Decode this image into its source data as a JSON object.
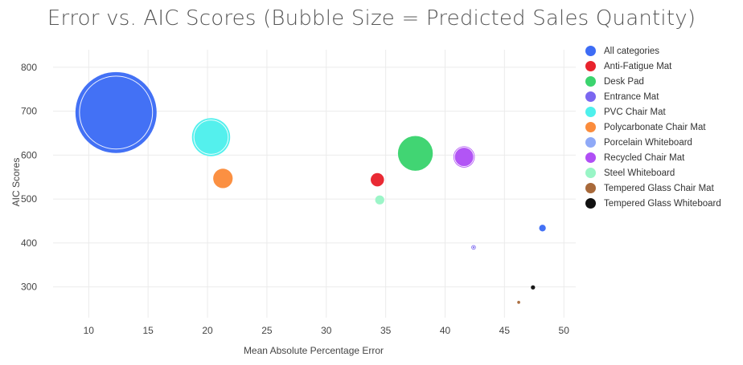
{
  "chart_data": {
    "type": "scatter",
    "title": "Error vs. AIC Scores (Bubble Size = Predicted Sales Quantity)",
    "xlabel": "Mean Absolute Percentage Error",
    "ylabel": "AIC Scores",
    "xlim": [
      7,
      51
    ],
    "ylim": [
      230,
      840
    ],
    "xticks": [
      10,
      15,
      20,
      25,
      30,
      35,
      40,
      45,
      50
    ],
    "yticks": [
      300,
      400,
      500,
      600,
      700,
      800
    ],
    "grid": true,
    "legend_position": "right",
    "series": [
      {
        "name": "All categories",
        "color": "#3d6cf5",
        "points": [
          {
            "x": 12.3,
            "y": 697,
            "size": 5200,
            "outlined": true
          },
          {
            "x": 48.2,
            "y": 434,
            "size": 35
          }
        ]
      },
      {
        "name": "Anti-Fatigue Mat",
        "color": "#e8232d",
        "points": [
          {
            "x": 34.3,
            "y": 544,
            "size": 140
          }
        ]
      },
      {
        "name": "Desk Pad",
        "color": "#3bd46e",
        "points": [
          {
            "x": 37.5,
            "y": 604,
            "size": 960
          }
        ]
      },
      {
        "name": "Entrance Mat",
        "color": "#7b67f0",
        "points": [
          {
            "x": 42.4,
            "y": 390,
            "size": 16,
            "outlined": true
          }
        ]
      },
      {
        "name": "PVC Chair Mat",
        "color": "#4ef0ec",
        "points": [
          {
            "x": 20.3,
            "y": 641,
            "size": 1150,
            "outlined": true
          }
        ]
      },
      {
        "name": "Polycarbonate Chair Mat",
        "color": "#fb8c3c",
        "points": [
          {
            "x": 21.3,
            "y": 547,
            "size": 300
          }
        ]
      },
      {
        "name": "Porcelain Whiteboard",
        "color": "#8fa9f7",
        "points": []
      },
      {
        "name": "Recycled Chair Mat",
        "color": "#b04ff5",
        "points": [
          {
            "x": 41.6,
            "y": 596,
            "size": 360,
            "outlined": true
          }
        ]
      },
      {
        "name": "Steel Whiteboard",
        "color": "#99f5c6",
        "points": [
          {
            "x": 34.5,
            "y": 498,
            "size": 65
          }
        ]
      },
      {
        "name": "Tempered Glass Chair Mat",
        "color": "#a8693a",
        "points": [
          {
            "x": 46.2,
            "y": 265,
            "size": 7
          }
        ]
      },
      {
        "name": "Tempered Glass Whiteboard",
        "color": "#111111",
        "points": [
          {
            "x": 47.4,
            "y": 299,
            "size": 14
          }
        ]
      }
    ]
  }
}
